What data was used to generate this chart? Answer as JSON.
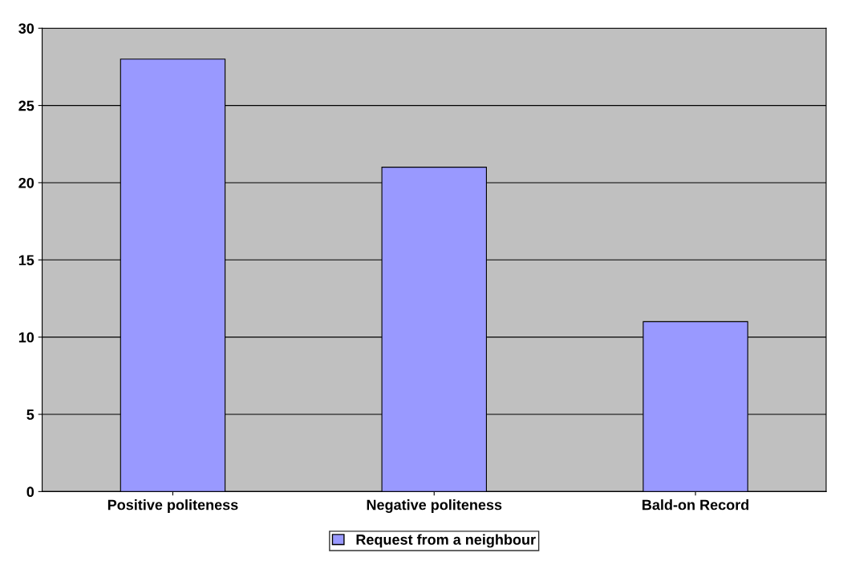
{
  "chart_data": {
    "type": "bar",
    "categories": [
      "Positive politeness",
      "Negative politeness",
      "Bald-on Record"
    ],
    "series": [
      {
        "name": "Request from a neighbour",
        "color": "#9999ff",
        "values": [
          28,
          21,
          11
        ]
      }
    ],
    "ylim": [
      0,
      30
    ],
    "yticks": [
      0,
      5,
      10,
      15,
      20,
      25,
      30
    ],
    "grid": "y",
    "legend": "bottom"
  }
}
